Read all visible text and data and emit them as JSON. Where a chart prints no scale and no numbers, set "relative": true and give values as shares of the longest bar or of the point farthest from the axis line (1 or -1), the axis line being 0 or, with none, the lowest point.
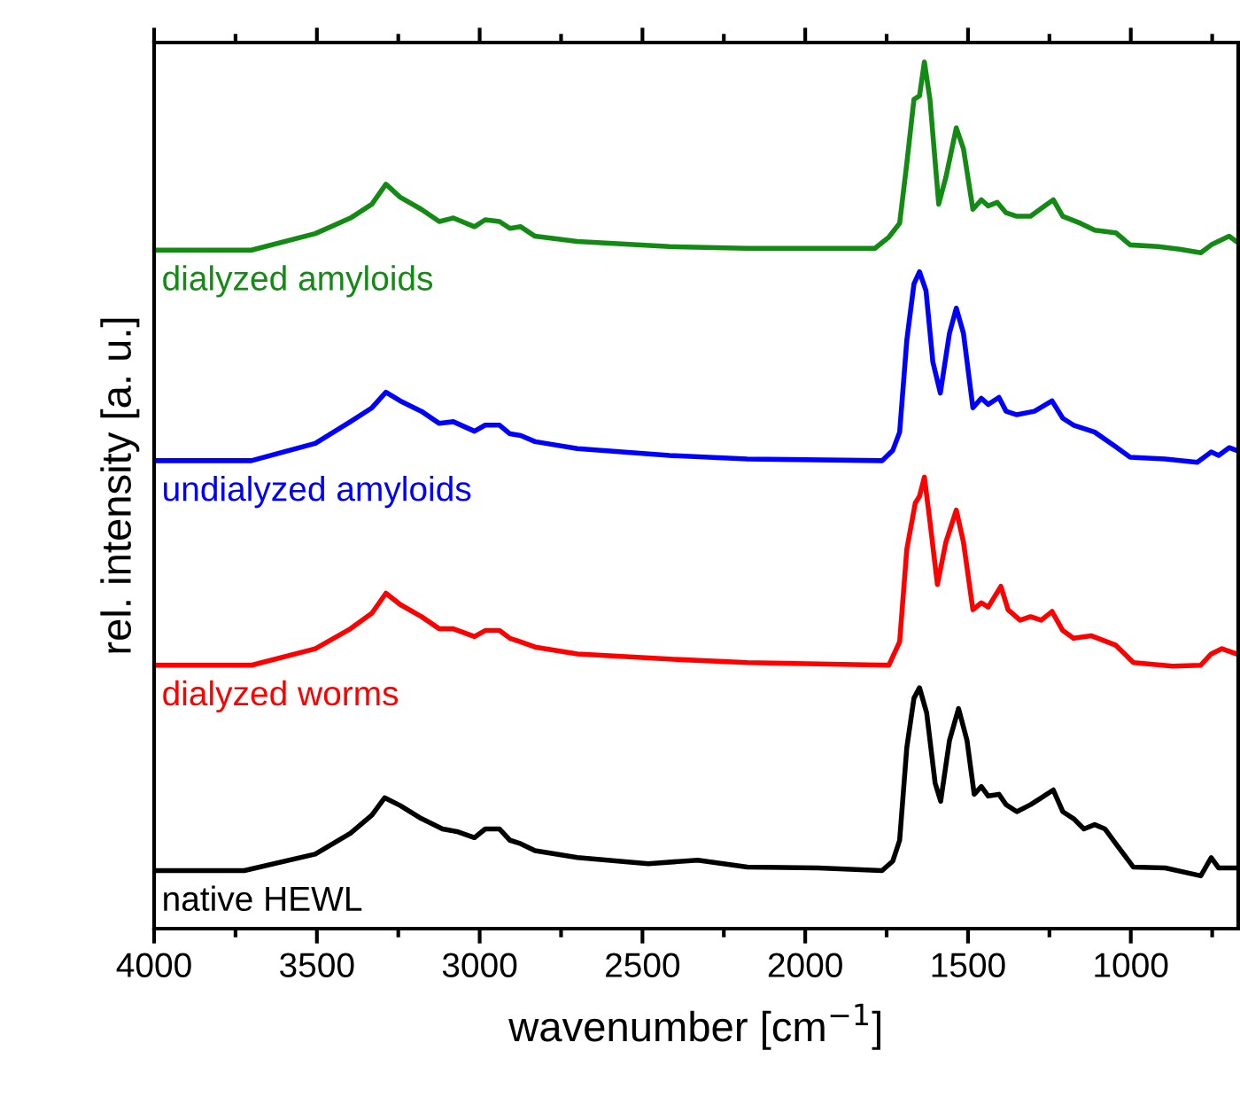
{
  "chart_data": {
    "type": "line",
    "relative": true,
    "xlabel": "wavenumber [cm$^{−1}$]",
    "ylabel": "rel. intensity [a. u.]",
    "xlim": [
      4000,
      670
    ],
    "xticks": [
      4000,
      {
        "value": 3750,
        "label": null
      },
      3500,
      {
        "value": 3250,
        "label": null
      },
      3000,
      {
        "value": 2750,
        "label": null
      },
      2500,
      {
        "value": 2250,
        "label": null
      },
      2000,
      {
        "value": 1750,
        "label": null
      },
      1500,
      {
        "value": 1250,
        "label": null
      },
      1000,
      {
        "value": 750,
        "label": null
      }
    ],
    "series": [
      {
        "name": "dialyzed amyloids",
        "color": "#138a13",
        "x": [
          4000,
          3701,
          3505,
          3397,
          3331,
          3288,
          3244,
          3179,
          3124,
          3081,
          3016,
          2983,
          2939,
          2907,
          2874,
          2830,
          2700,
          2417,
          2178,
          1786,
          1743,
          1710,
          1688,
          1666,
          1649,
          1634,
          1617,
          1590,
          1568,
          1536,
          1514,
          1485,
          1459,
          1438,
          1410,
          1383,
          1350,
          1308,
          1264,
          1238,
          1209,
          1155,
          1111,
          1046,
          1002,
          916,
          850,
          785,
          753,
          698,
          676
        ],
        "values": [
          0.783,
          0.783,
          0.802,
          0.82,
          0.836,
          0.859,
          0.844,
          0.83,
          0.816,
          0.82,
          0.81,
          0.818,
          0.816,
          0.808,
          0.81,
          0.799,
          0.793,
          0.787,
          0.785,
          0.785,
          0.798,
          0.814,
          0.883,
          0.957,
          0.961,
          1.0,
          0.957,
          0.836,
          0.867,
          0.924,
          0.9,
          0.83,
          0.841,
          0.834,
          0.838,
          0.826,
          0.822,
          0.822,
          0.834,
          0.841,
          0.822,
          0.814,
          0.806,
          0.803,
          0.789,
          0.787,
          0.784,
          0.78,
          0.789,
          0.799,
          0.793
        ]
      },
      {
        "name": "undialyzed amyloids",
        "color": "#0000ff",
        "x": [
          4000,
          3701,
          3505,
          3397,
          3331,
          3288,
          3244,
          3179,
          3124,
          3081,
          3016,
          2983,
          2939,
          2907,
          2874,
          2830,
          2700,
          2417,
          2178,
          1764,
          1731,
          1710,
          1688,
          1666,
          1649,
          1629,
          1608,
          1585,
          1557,
          1536,
          1514,
          1485,
          1459,
          1438,
          1405,
          1383,
          1350,
          1296,
          1242,
          1209,
          1176,
          1111,
          1046,
          1002,
          894,
          796,
          753,
          730,
          698,
          676
        ],
        "values": [
          0.54,
          0.54,
          0.56,
          0.585,
          0.601,
          0.619,
          0.609,
          0.597,
          0.583,
          0.585,
          0.574,
          0.581,
          0.581,
          0.571,
          0.569,
          0.562,
          0.554,
          0.546,
          0.542,
          0.54,
          0.552,
          0.573,
          0.679,
          0.744,
          0.758,
          0.736,
          0.654,
          0.618,
          0.687,
          0.716,
          0.687,
          0.601,
          0.612,
          0.605,
          0.613,
          0.597,
          0.593,
          0.597,
          0.609,
          0.589,
          0.581,
          0.573,
          0.556,
          0.544,
          0.542,
          0.538,
          0.55,
          0.546,
          0.555,
          0.552
        ]
      },
      {
        "name": "dialyzed worms",
        "color": "#ff0000",
        "x": [
          4000,
          3701,
          3505,
          3397,
          3331,
          3288,
          3244,
          3179,
          3124,
          3081,
          3016,
          2983,
          2939,
          2907,
          2874,
          2830,
          2700,
          2417,
          2178,
          1743,
          1710,
          1688,
          1662,
          1649,
          1634,
          1617,
          1594,
          1568,
          1536,
          1514,
          1485,
          1459,
          1438,
          1399,
          1377,
          1340,
          1308,
          1275,
          1242,
          1209,
          1176,
          1122,
          1046,
          992,
          872,
          785,
          753,
          720,
          676
        ],
        "values": [
          0.304,
          0.304,
          0.323,
          0.346,
          0.364,
          0.387,
          0.374,
          0.36,
          0.346,
          0.346,
          0.337,
          0.344,
          0.344,
          0.335,
          0.331,
          0.325,
          0.317,
          0.311,
          0.307,
          0.304,
          0.331,
          0.438,
          0.491,
          0.499,
          0.521,
          0.47,
          0.397,
          0.446,
          0.483,
          0.446,
          0.368,
          0.376,
          0.371,
          0.395,
          0.368,
          0.356,
          0.36,
          0.356,
          0.366,
          0.344,
          0.335,
          0.338,
          0.327,
          0.307,
          0.303,
          0.304,
          0.317,
          0.323,
          0.317
        ]
      },
      {
        "name": "native HEWL",
        "color": "#000000",
        "x": [
          4000,
          3723,
          3505,
          3397,
          3331,
          3292,
          3244,
          3179,
          3114,
          3070,
          3016,
          2983,
          2939,
          2907,
          2874,
          2830,
          2700,
          2482,
          2330,
          2178,
          1960,
          1764,
          1731,
          1710,
          1688,
          1666,
          1649,
          1627,
          1601,
          1584,
          1557,
          1529,
          1503,
          1481,
          1459,
          1438,
          1405,
          1383,
          1350,
          1308,
          1275,
          1238,
          1209,
          1176,
          1144,
          1111,
          1079,
          1046,
          992,
          894,
          785,
          753,
          730,
          676
        ],
        "values": [
          0.067,
          0.067,
          0.086,
          0.11,
          0.131,
          0.151,
          0.142,
          0.127,
          0.115,
          0.112,
          0.105,
          0.115,
          0.115,
          0.102,
          0.098,
          0.09,
          0.082,
          0.075,
          0.079,
          0.071,
          0.07,
          0.067,
          0.078,
          0.102,
          0.209,
          0.266,
          0.278,
          0.249,
          0.168,
          0.147,
          0.217,
          0.254,
          0.217,
          0.155,
          0.164,
          0.153,
          0.155,
          0.143,
          0.135,
          0.143,
          0.151,
          0.16,
          0.135,
          0.127,
          0.115,
          0.12,
          0.115,
          0.098,
          0.071,
          0.07,
          0.061,
          0.082,
          0.07,
          0.07
        ]
      }
    ]
  }
}
